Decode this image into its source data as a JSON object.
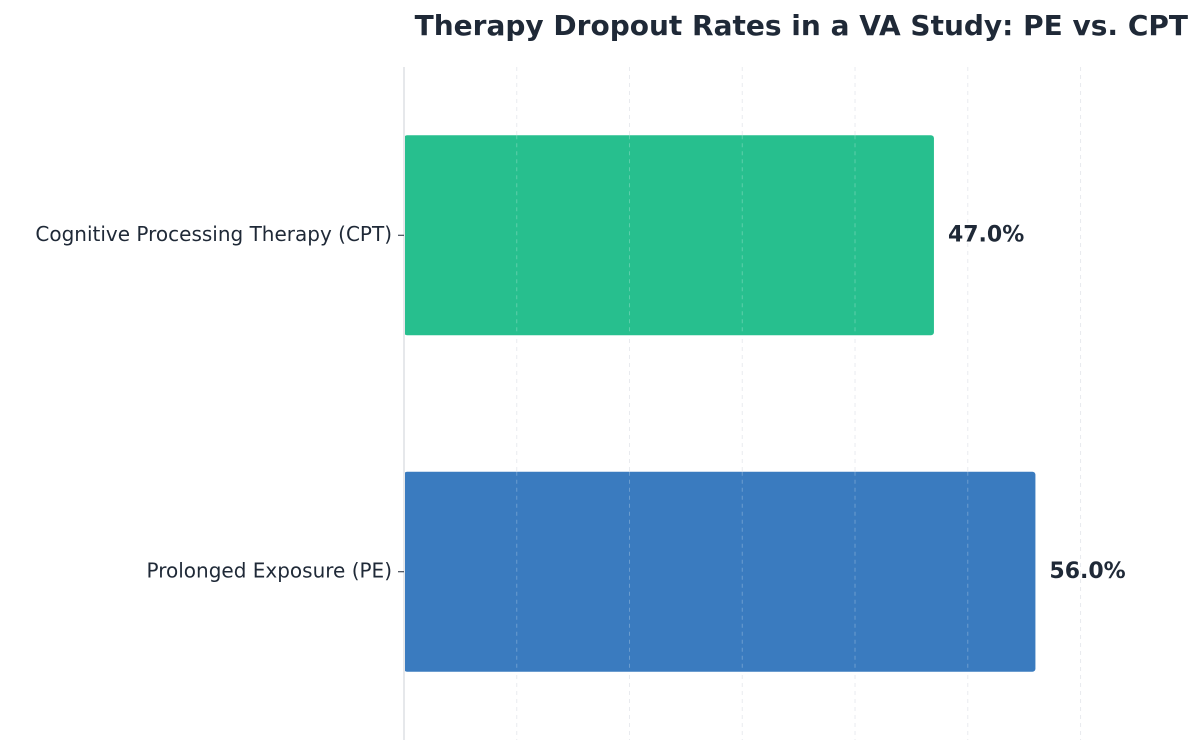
{
  "chart_data": {
    "type": "bar",
    "orientation": "horizontal",
    "title": "Therapy Dropout Rates in a VA Study: PE vs. CPT",
    "xlabel": "",
    "ylabel": "",
    "categories": [
      "Cognitive Processing Therapy (CPT)",
      "Prolonged Exposure (PE)"
    ],
    "values": [
      47.0,
      56.0
    ],
    "value_labels": [
      "47.0%",
      "56.0%"
    ],
    "colors": [
      "#27bf8e",
      "#3a7bbf"
    ],
    "xlim": [
      0,
      69
    ],
    "x_gridlines": [
      10,
      20,
      30,
      40,
      50,
      60,
      70
    ],
    "grid": true,
    "axis_color": "#e6e8eb",
    "grid_color": "#dfe3e8",
    "text_color": "#1f2937"
  }
}
